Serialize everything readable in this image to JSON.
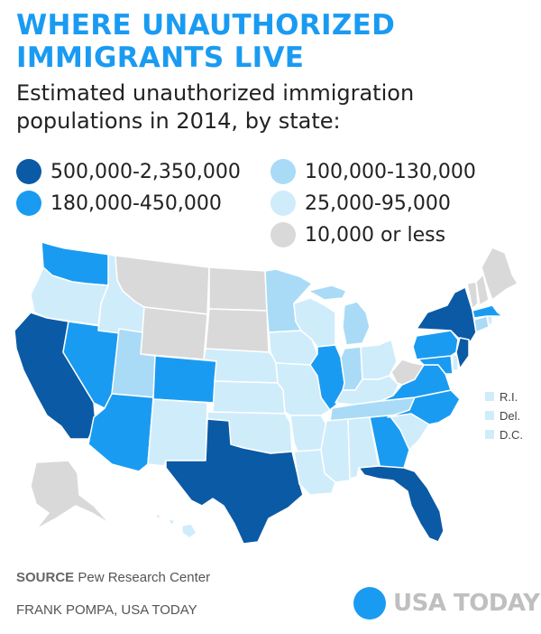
{
  "header": {
    "title": "WHERE UNAUTHORIZED IMMIGRANTS LIVE",
    "subtitle": "Estimated unauthorized immigration populations in 2014, by state:"
  },
  "legend": [
    {
      "label": "500,000-2,350,000",
      "color": "#0b5aa5"
    },
    {
      "label": "180,000-450,000",
      "color": "#1a9bf2"
    },
    {
      "label": "100,000-130,000",
      "color": "#a9dbf7"
    },
    {
      "label": "25,000-95,000",
      "color": "#cfecfb"
    },
    {
      "label": "10,000 or less",
      "color": "#d9d9d9"
    }
  ],
  "small_states": [
    {
      "label": "R.I.",
      "color": "#cfecfb"
    },
    {
      "label": "Del.",
      "color": "#cfecfb"
    },
    {
      "label": "D.C.",
      "color": "#cfecfb"
    }
  ],
  "map": {
    "WA": "b2",
    "OR": "b4",
    "CA": "b1",
    "NV": "b2",
    "ID": "b4",
    "MT": "b5",
    "WY": "b5",
    "UT": "b3",
    "AZ": "b2",
    "CO": "b2",
    "NM": "b4",
    "ND": "b5",
    "SD": "b5",
    "NE": "b4",
    "KS": "b4",
    "OK": "b4",
    "TX": "b1",
    "MN": "b3",
    "IA": "b4",
    "MO": "b4",
    "AR": "b4",
    "LA": "b4",
    "WI": "b4",
    "IL": "b2",
    "MI": "b3",
    "IN": "b3",
    "OH": "b4",
    "KY": "b4",
    "TN": "b3",
    "MS": "b4",
    "AL": "b4",
    "GA": "b2",
    "FL": "b1",
    "SC": "b4",
    "NC": "b2",
    "VA": "b2",
    "WV": "b5",
    "MD": "b2",
    "DE": "b4",
    "PA": "b2",
    "NY": "b1",
    "NJ": "b1",
    "CT": "b3",
    "RI": "b4",
    "MA": "b2",
    "VT": "b5",
    "NH": "b5",
    "ME": "b5",
    "AK": "b5",
    "HI": "b4"
  },
  "footer": {
    "source_label": "SOURCE",
    "source_text": "Pew Research Center",
    "credit": "FRANK POMPA, USA TODAY",
    "brand": "USA TODAY"
  }
}
